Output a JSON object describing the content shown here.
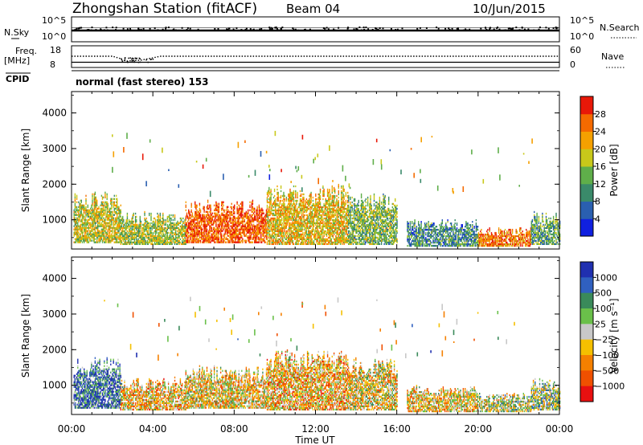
{
  "header": {
    "station": "Zhongshan Station (fitACF)",
    "beam": "Beam 04",
    "date": "10/Jun/2015"
  },
  "panels": {
    "nsky": {
      "label": "N.Sky",
      "ytick_top": "10^5",
      "ytick_bottom": "10^0"
    },
    "nsearch": {
      "label": "N.Search",
      "ytick_top": "10^5",
      "ytick_bottom": "10^0"
    },
    "freq": {
      "label_line1": "Freq.",
      "label_line2": "[MHz]",
      "ytick_top": "18",
      "ytick_bottom": "8"
    },
    "nave": {
      "label": "Nave",
      "ytick_top": "60",
      "ytick_bottom": "0"
    },
    "cpid": {
      "label": "CPID",
      "text": "normal (fast stereo) 153"
    }
  },
  "axes": {
    "ylabel": "Slant Range [km]",
    "xlabel": "Time UT",
    "yticks": [
      "1000",
      "2000",
      "3000",
      "4000"
    ],
    "xticks": [
      "00:00",
      "04:00",
      "08:00",
      "12:00",
      "16:00",
      "20:00",
      "00:00"
    ]
  },
  "colorbars": {
    "power": {
      "label": "Power [dB]",
      "ticks": [
        "4",
        "8",
        "12",
        "16",
        "20",
        "24",
        "28"
      ],
      "colors": [
        "#1020e0",
        "#2a5fb0",
        "#3a8a6a",
        "#5fae4a",
        "#c8c81a",
        "#f5a000",
        "#f56a00",
        "#e81808"
      ]
    },
    "velocity": {
      "label": "Velocity [m s⁻¹]",
      "ticks": [
        "1000",
        "500",
        "100",
        "25",
        "−25",
        "−100",
        "−500",
        "−1000"
      ],
      "colors": [
        "#2030b0",
        "#3060c0",
        "#3a8a5a",
        "#6ac04a",
        "#c8c8c8",
        "#f5c000",
        "#f58000",
        "#f05000",
        "#e81010"
      ]
    }
  },
  "chart_data": [
    {
      "type": "heatmap",
      "title": "Power",
      "xlabel": "Time UT",
      "ylabel": "Slant Range [km]",
      "xlim": [
        0,
        24
      ],
      "ylim": [
        180,
        4600
      ],
      "colorbar_label": "Power [dB]",
      "colorbar_range": [
        0,
        32
      ],
      "regions": [
        {
          "t_start": 0.1,
          "t_end": 2.4,
          "r_min": 350,
          "r_max": 1600,
          "value": 18
        },
        {
          "t_start": 2.4,
          "t_end": 5.6,
          "r_min": 300,
          "r_max": 1100,
          "value": 16
        },
        {
          "t_start": 5.6,
          "t_end": 9.6,
          "r_min": 350,
          "r_max": 1400,
          "value": 27
        },
        {
          "t_start": 9.6,
          "t_end": 13.6,
          "r_min": 300,
          "r_max": 1800,
          "value": 20
        },
        {
          "t_start": 13.6,
          "t_end": 16.0,
          "r_min": 300,
          "r_max": 1600,
          "value": 14
        },
        {
          "t_start": 16.5,
          "t_end": 20.0,
          "r_min": 250,
          "r_max": 900,
          "value": 10
        },
        {
          "t_start": 20.0,
          "t_end": 22.6,
          "r_min": 250,
          "r_max": 700,
          "value": 25
        },
        {
          "t_start": 22.6,
          "t_end": 24.0,
          "r_min": 300,
          "r_max": 1100,
          "value": 12
        }
      ]
    },
    {
      "type": "heatmap",
      "title": "Velocity",
      "xlabel": "Time UT",
      "ylabel": "Slant Range [km]",
      "xlim": [
        0,
        24
      ],
      "ylim": [
        180,
        4600
      ],
      "colorbar_label": "Velocity [m s⁻¹]",
      "colorbar_range": [
        -1000,
        1000
      ],
      "regions": [
        {
          "t_start": 0.1,
          "t_end": 2.4,
          "r_min": 350,
          "r_max": 1600,
          "value": 600
        },
        {
          "t_start": 2.4,
          "t_end": 5.6,
          "r_min": 300,
          "r_max": 1100,
          "value": -200
        },
        {
          "t_start": 5.6,
          "t_end": 9.6,
          "r_min": 350,
          "r_max": 1400,
          "value": -150
        },
        {
          "t_start": 9.6,
          "t_end": 13.6,
          "r_min": 300,
          "r_max": 1800,
          "value": -250
        },
        {
          "t_start": 13.6,
          "t_end": 16.0,
          "r_min": 300,
          "r_max": 1600,
          "value": -120
        },
        {
          "t_start": 16.5,
          "t_end": 20.0,
          "r_min": 250,
          "r_max": 900,
          "value": -180
        },
        {
          "t_start": 20.0,
          "t_end": 22.6,
          "r_min": 250,
          "r_max": 700,
          "value": 30
        },
        {
          "t_start": 22.6,
          "t_end": 24.0,
          "r_min": 300,
          "r_max": 1100,
          "value": 120
        }
      ]
    }
  ]
}
